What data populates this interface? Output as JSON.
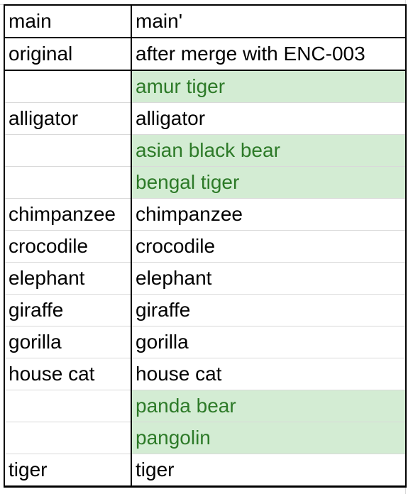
{
  "sheet": {
    "columns": [
      "main",
      "main'"
    ],
    "subheader": [
      "original",
      "after merge with ENC-003"
    ],
    "rows": [
      {
        "left": "",
        "right": "amur tiger",
        "added": true
      },
      {
        "left": "alligator",
        "right": "alligator",
        "added": false
      },
      {
        "left": "",
        "right": "asian black bear",
        "added": true
      },
      {
        "left": "",
        "right": "bengal tiger",
        "added": true
      },
      {
        "left": "chimpanzee",
        "right": "chimpanzee",
        "added": false
      },
      {
        "left": "crocodile",
        "right": "crocodile",
        "added": false
      },
      {
        "left": "elephant",
        "right": "elephant",
        "added": false
      },
      {
        "left": "giraffe",
        "right": "giraffe",
        "added": false
      },
      {
        "left": "gorilla",
        "right": "gorilla",
        "added": false
      },
      {
        "left": "house cat",
        "right": "house cat",
        "added": false
      },
      {
        "left": "",
        "right": "panda bear",
        "added": true
      },
      {
        "left": "",
        "right": "pangolin",
        "added": true
      },
      {
        "left": "tiger",
        "right": "tiger",
        "added": false
      }
    ]
  },
  "colors": {
    "added_fill": "#d3ecd3",
    "added_text": "#2d7a28",
    "border": "#000000",
    "gridline": "#d9d9d9"
  }
}
